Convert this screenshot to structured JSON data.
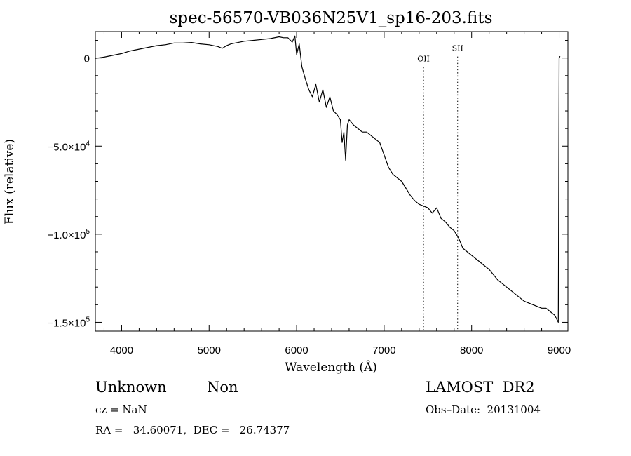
{
  "chart_data": {
    "type": "line",
    "title": "spec-56570-VB036N25V1_sp16-203.fits",
    "xlabel": "Wavelength (Å)",
    "ylabel": "Flux (relative)",
    "xlim": [
      3700,
      9100
    ],
    "ylim": [
      -155000,
      15000
    ],
    "x_ticks": [
      4000,
      5000,
      6000,
      7000,
      8000,
      9000
    ],
    "x_tick_labels": [
      "4000",
      "5000",
      "6000",
      "7000",
      "8000",
      "9000"
    ],
    "y_ticks": [
      0,
      -50000,
      -100000,
      -150000
    ],
    "y_tick_labels": [
      {
        "mant": "0",
        "exp": ""
      },
      {
        "mant": "−5.0×10",
        "exp": "4"
      },
      {
        "mant": "−1.0×10",
        "exp": "5"
      },
      {
        "mant": "−1.5×10",
        "exp": "5"
      }
    ],
    "grid": false,
    "annotations": [
      {
        "label": "OII",
        "x": 7450,
        "label_y": -2000
      },
      {
        "label": "SII",
        "x": 7840,
        "label_y": 4000
      }
    ],
    "series": [
      {
        "color": "#000000",
        "x": [
          3700,
          3800,
          3900,
          4000,
          4100,
          4200,
          4300,
          4400,
          4500,
          4600,
          4700,
          4800,
          4900,
          5000,
          5100,
          5150,
          5200,
          5250,
          5300,
          5400,
          5500,
          5600,
          5700,
          5800,
          5850,
          5900,
          5950,
          5980,
          6000,
          6030,
          6060,
          6100,
          6140,
          6180,
          6220,
          6260,
          6300,
          6340,
          6380,
          6420,
          6460,
          6500,
          6520,
          6540,
          6560,
          6580,
          6600,
          6650,
          6700,
          6750,
          6800,
          6850,
          6900,
          6950,
          7000,
          7050,
          7100,
          7150,
          7200,
          7250,
          7300,
          7350,
          7400,
          7450,
          7500,
          7550,
          7600,
          7650,
          7700,
          7750,
          7800,
          7850,
          7900,
          7950,
          8000,
          8050,
          8100,
          8150,
          8200,
          8250,
          8300,
          8350,
          8400,
          8450,
          8500,
          8550,
          8600,
          8650,
          8700,
          8750,
          8800,
          8850,
          8900,
          8950,
          8990,
          9000,
          9010
        ],
        "y": [
          -200,
          500,
          1500,
          2500,
          4000,
          5000,
          6000,
          7000,
          7500,
          8500,
          8500,
          8800,
          8000,
          7500,
          6500,
          5500,
          7000,
          8000,
          8500,
          9500,
          10000,
          10500,
          11000,
          12000,
          11500,
          11500,
          9000,
          12500,
          2000,
          8000,
          -5000,
          -12000,
          -18000,
          -22000,
          -15000,
          -25000,
          -18000,
          -28000,
          -22000,
          -30000,
          -32000,
          -35000,
          -48000,
          -42000,
          -58000,
          -38000,
          -35000,
          -38000,
          -40000,
          -42000,
          -42000,
          -44000,
          -46000,
          -48000,
          -55000,
          -62000,
          -66000,
          -68000,
          -70000,
          -74000,
          -78000,
          -81000,
          -83000,
          -84000,
          -85000,
          -88000,
          -85000,
          -91000,
          -93000,
          -96000,
          -98000,
          -102000,
          -108000,
          -110000,
          -112000,
          -114000,
          -116000,
          -118000,
          -120000,
          -123000,
          -126000,
          -128000,
          -130000,
          -132000,
          -134000,
          -136000,
          -138000,
          -139000,
          -140000,
          -141000,
          -142000,
          -142000,
          -144000,
          -146000,
          -150000,
          0,
          1000
        ]
      }
    ]
  },
  "footer": {
    "object_class": "Unknown",
    "object_subclass": "Non",
    "survey": "LAMOST  DR2",
    "cz": "cz = NaN",
    "obs_date": "Obs–Date:  20131004",
    "coords": "RA =   34.60071,  DEC =   26.74377"
  }
}
